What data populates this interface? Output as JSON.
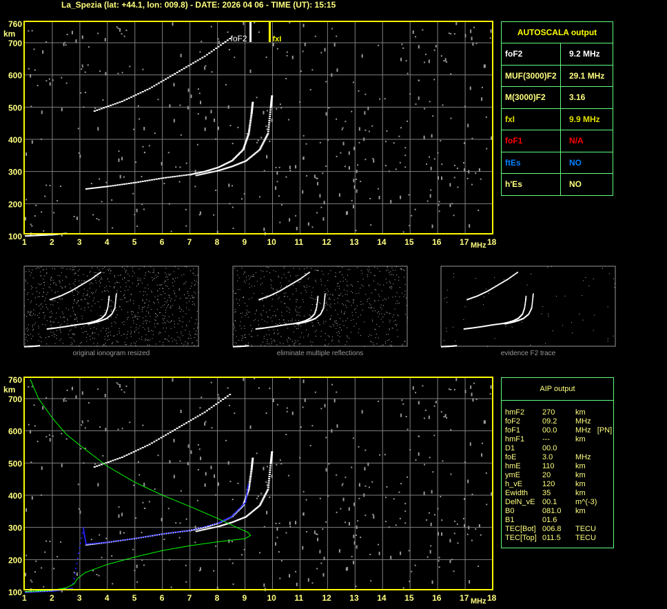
{
  "title": "La_Spezia (lat: +44.1, lon: 009.8) - DATE: 2026 04 06 - TIME (UT): 15:15",
  "colors": {
    "axis": "#ffff00",
    "grid": "#808080",
    "trace": "#ffffff",
    "profile": "#00ff00",
    "aip_trace": "#0000ff",
    "table_border": "#60ff80"
  },
  "chart_data": [
    {
      "type": "scatter",
      "name_label": "ionogram",
      "xlabel": "MHz",
      "ylabel": "km",
      "xlim": [
        1,
        18
      ],
      "ylim": [
        100,
        760
      ],
      "grid": true,
      "xticks": [
        "1",
        "2",
        "3",
        "4",
        "5",
        "6",
        "7",
        "8",
        "9",
        "10",
        "11",
        "12",
        "13",
        "14",
        "15",
        "16",
        "17",
        "18"
      ],
      "yticks": [
        "100",
        "200",
        "300",
        "400",
        "500",
        "600",
        "700",
        "760"
      ],
      "annotations": [
        {
          "text": "foF2",
          "x": 9.2
        },
        {
          "text": "fxI",
          "x": 9.9
        }
      ],
      "traces": {
        "F2_o": [
          [
            3.2,
            248
          ],
          [
            4,
            256
          ],
          [
            5,
            268
          ],
          [
            6,
            282
          ],
          [
            7,
            293
          ],
          [
            7.5,
            302
          ],
          [
            8,
            315
          ],
          [
            8.5,
            336
          ],
          [
            8.9,
            370
          ],
          [
            9.1,
            420
          ],
          [
            9.2,
            480
          ],
          [
            9.25,
            520
          ]
        ],
        "F2_x": [
          [
            7.2,
            290
          ],
          [
            8,
            305
          ],
          [
            8.5,
            318
          ],
          [
            9,
            335
          ],
          [
            9.5,
            370
          ],
          [
            9.8,
            420
          ],
          [
            9.9,
            500
          ],
          [
            9.95,
            540
          ]
        ],
        "E": [
          [
            1,
            102
          ],
          [
            1.5,
            104
          ],
          [
            2,
            106
          ],
          [
            2.5,
            110
          ]
        ],
        "F2_multiple": [
          [
            3.5,
            490
          ],
          [
            4.5,
            520
          ],
          [
            5.5,
            560
          ],
          [
            6.5,
            610
          ],
          [
            7.5,
            660
          ],
          [
            8.5,
            720
          ]
        ]
      }
    },
    {
      "type": "line",
      "xlabel": "MHz",
      "ylabel": "km",
      "xlim": [
        1,
        18
      ],
      "ylim": [
        100,
        760
      ],
      "grid": true,
      "xticks": [
        "1",
        "2",
        "3",
        "4",
        "5",
        "6",
        "7",
        "8",
        "9",
        "10",
        "11",
        "12",
        "13",
        "14",
        "15",
        "16",
        "17",
        "18"
      ],
      "yticks": [
        "100",
        "200",
        "300",
        "400",
        "500",
        "600",
        "700",
        "760"
      ],
      "profile": [
        [
          1.2,
          760
        ],
        [
          1.5,
          700
        ],
        [
          2,
          640
        ],
        [
          2.5,
          590
        ],
        [
          3,
          555
        ],
        [
          4,
          490
        ],
        [
          5,
          440
        ],
        [
          6,
          400
        ],
        [
          7,
          365
        ],
        [
          8,
          328
        ],
        [
          8.7,
          300
        ],
        [
          9.1,
          285
        ],
        [
          9.2,
          275
        ],
        [
          9,
          265
        ],
        [
          8,
          255
        ],
        [
          7,
          243
        ],
        [
          6,
          228
        ],
        [
          5,
          208
        ],
        [
          4,
          185
        ],
        [
          3.2,
          160
        ],
        [
          2.9,
          140
        ],
        [
          2.8,
          125
        ],
        [
          2.5,
          112
        ],
        [
          2,
          105
        ],
        [
          1,
          100
        ]
      ],
      "aip_trace": [
        [
          1,
          100
        ],
        [
          2,
          104
        ],
        [
          2.7,
          112
        ],
        [
          3.1,
          300
        ],
        [
          3.2,
          250
        ],
        [
          4,
          256
        ],
        [
          5,
          268
        ],
        [
          6,
          282
        ],
        [
          7,
          293
        ],
        [
          8,
          315
        ],
        [
          8.5,
          336
        ],
        [
          9,
          380
        ],
        [
          9.1,
          440
        ]
      ]
    }
  ],
  "thumbnails": [
    {
      "caption": "original ionogram resized"
    },
    {
      "caption": "eliminate multiple reflections"
    },
    {
      "caption": "evidence F2 trace"
    }
  ],
  "autoscala": {
    "header": "AUTOSCALA output",
    "rows": [
      {
        "label": "foF2",
        "value": "9.2 MHz",
        "color": "#ffffff"
      },
      {
        "label": "MUF(3000)F2",
        "value": "29.1 MHz",
        "color": "#ffff80"
      },
      {
        "label": "M(3000)F2",
        "value": "3.16",
        "color": "#ffff80"
      },
      {
        "label": "fxI",
        "value": "9.9 MHz",
        "color": "#e0e000"
      },
      {
        "label": "foF1",
        "value": "N/A",
        "color": "#ff0000"
      },
      {
        "label": "ftEs",
        "value": "NO",
        "color": "#0080ff"
      },
      {
        "label": "h'Es",
        "value": "NO",
        "color": "#ffff80"
      }
    ]
  },
  "aip": {
    "header": "AIP output",
    "rows": [
      [
        "hmF2",
        "270",
        "km"
      ],
      [
        "foF2",
        "09.2",
        "MHz"
      ],
      [
        "foF1",
        "00.0",
        "MHz   [PN]"
      ],
      [
        "hmF1",
        "---",
        "km"
      ],
      [
        "D1",
        "00.0",
        ""
      ],
      [
        "foE",
        "3.0",
        "MHz"
      ],
      [
        "hmE",
        "110",
        "km"
      ],
      [
        "ymE",
        "20",
        "km"
      ],
      [
        "h_vE",
        "120",
        "km"
      ],
      [
        "Ewidth",
        "35",
        "km"
      ],
      [
        "DelN_vE",
        "00.1",
        "m^(-3)"
      ],
      [
        "B0",
        "081.0",
        "km"
      ],
      [
        "B1",
        "01.6",
        ""
      ],
      [
        "TEC[Bot]",
        "006.8",
        "TECU"
      ],
      [
        "TEC[Top]",
        "011.5",
        "TECU"
      ]
    ]
  }
}
